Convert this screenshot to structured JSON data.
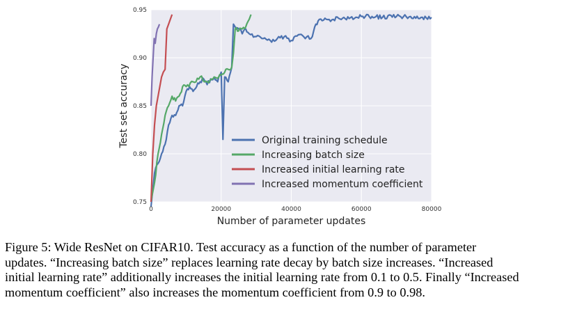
{
  "chart_data": {
    "type": "line",
    "title": "",
    "xlabel": "Number of parameter updates",
    "ylabel": "Test set accuracy",
    "xlim": [
      0,
      80000
    ],
    "ylim": [
      0.75,
      0.95
    ],
    "x_ticks": [
      0,
      20000,
      40000,
      60000,
      80000
    ],
    "x_tick_labels": [
      "0",
      "20000",
      "40000",
      "60000",
      "80000"
    ],
    "y_ticks": [
      0.75,
      0.8,
      0.85,
      0.9,
      0.95
    ],
    "y_tick_labels": [
      "0.75",
      "0.80",
      "0.85",
      "0.90",
      "0.95"
    ],
    "grid": true,
    "legend_position": "lower-right",
    "series": [
      {
        "name": "Original training schedule",
        "color": "#4c72b0",
        "x": [
          0,
          1000,
          2000,
          3000,
          4000,
          5000,
          6000,
          7000,
          8000,
          9000,
          10000,
          11000,
          12000,
          13000,
          14000,
          15000,
          16000,
          17000,
          18000,
          19000,
          20000,
          20500,
          21000,
          22000,
          23000,
          23500,
          24000,
          25000,
          26000,
          27000,
          28000,
          30000,
          32000,
          34000,
          36000,
          38000,
          40000,
          42000,
          44000,
          46000,
          47000,
          48000,
          50000,
          52000,
          55000,
          58000,
          60000,
          63000,
          66000,
          70000,
          74000,
          77000,
          80000
        ],
        "y": [
          0.745,
          0.78,
          0.79,
          0.8,
          0.81,
          0.83,
          0.84,
          0.84,
          0.85,
          0.85,
          0.865,
          0.87,
          0.865,
          0.87,
          0.875,
          0.878,
          0.872,
          0.878,
          0.88,
          0.875,
          0.885,
          0.815,
          0.88,
          0.875,
          0.89,
          0.935,
          0.932,
          0.93,
          0.925,
          0.93,
          0.925,
          0.922,
          0.92,
          0.918,
          0.92,
          0.922,
          0.918,
          0.924,
          0.92,
          0.922,
          0.935,
          0.94,
          0.94,
          0.94,
          0.942,
          0.941,
          0.943,
          0.943,
          0.942,
          0.943,
          0.943,
          0.942,
          0.942
        ]
      },
      {
        "name": "Increasing batch size",
        "color": "#55a868",
        "x": [
          0,
          1000,
          2000,
          3000,
          4000,
          5000,
          6000,
          7000,
          8000,
          9000,
          10000,
          12000,
          14000,
          16000,
          18000,
          20000,
          21000,
          22000,
          23000,
          23500,
          24000,
          25000,
          26000,
          27000,
          28000,
          28500
        ],
        "y": [
          0.75,
          0.77,
          0.8,
          0.82,
          0.84,
          0.85,
          0.86,
          0.855,
          0.86,
          0.87,
          0.87,
          0.875,
          0.88,
          0.875,
          0.88,
          0.882,
          0.885,
          0.888,
          0.89,
          0.905,
          0.93,
          0.928,
          0.93,
          0.932,
          0.94,
          0.945
        ]
      },
      {
        "name": "Increased initial learning rate",
        "color": "#c44e52",
        "x": [
          0,
          500,
          1000,
          1500,
          2000,
          2500,
          3000,
          3500,
          4000,
          4500,
          5000,
          5500,
          6000
        ],
        "y": [
          0.75,
          0.8,
          0.83,
          0.85,
          0.86,
          0.87,
          0.88,
          0.885,
          0.888,
          0.93,
          0.935,
          0.94,
          0.945
        ]
      },
      {
        "name": "Increased momentum coefficient",
        "color": "#8172b2",
        "x": [
          0,
          300,
          600,
          900,
          1200,
          1500,
          1800,
          2100,
          2400
        ],
        "y": [
          0.85,
          0.88,
          0.9,
          0.92,
          0.915,
          0.925,
          0.93,
          0.932,
          0.935
        ]
      }
    ]
  },
  "caption": {
    "lines": [
      "Figure 5: Wide ResNet on CIFAR10.  Test accuracy as a function of the number of parameter",
      "updates. “Increasing batch size” replaces learning rate decay by batch size increases.  “Increased",
      "initial learning rate” additionally increases the initial learning rate from 0.1 to 0.5. Finally “Increased",
      "momentum coefficient” also increases the momentum coefficient from 0.9 to 0.98."
    ]
  }
}
